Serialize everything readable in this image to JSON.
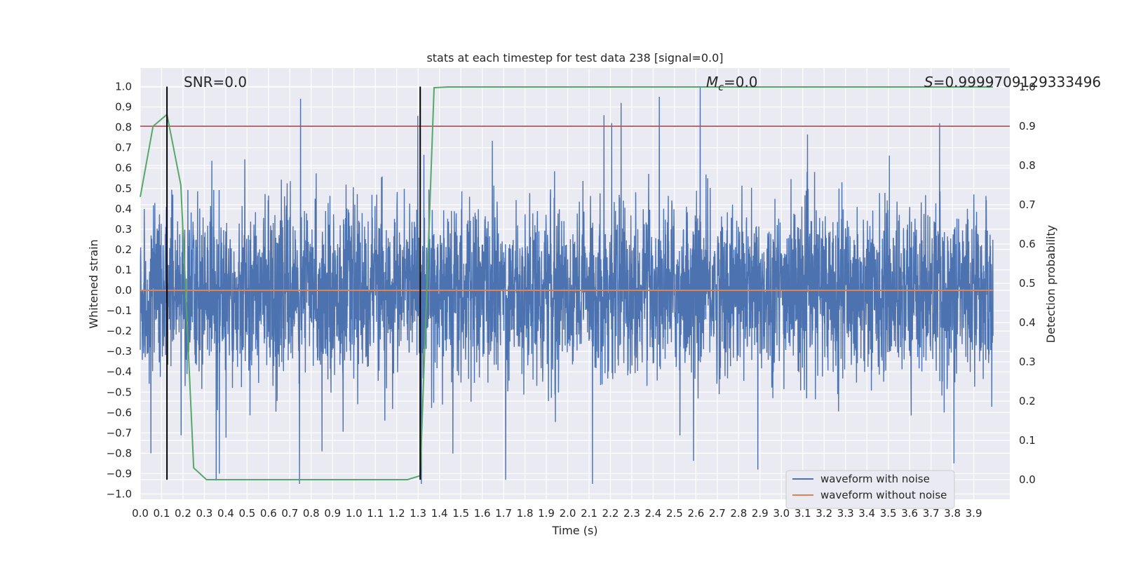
{
  "chart_data": {
    "type": "line",
    "title": "stats at each timestep for test data 238 [signal=0.0]",
    "xlabel": "Time (s)",
    "ylabel": "Whitened strain",
    "y2label": "Detection probability",
    "xlim": [
      0.0,
      3.99
    ],
    "ylim": [
      -1.05,
      1.08
    ],
    "y2lim": [
      -0.05,
      1.0
    ],
    "x_ticks": [
      "0.0",
      "0.1",
      "0.2",
      "0.3",
      "0.4",
      "0.5",
      "0.6",
      "0.7",
      "0.8",
      "0.9",
      "1.0",
      "1.1",
      "1.2",
      "1.3",
      "1.4",
      "1.5",
      "1.6",
      "1.7",
      "1.8",
      "1.9",
      "2.0",
      "2.1",
      "2.2",
      "2.3",
      "2.4",
      "2.5",
      "2.6",
      "2.7",
      "2.8",
      "2.9",
      "3.0",
      "3.1",
      "3.2",
      "3.3",
      "3.4",
      "3.5",
      "3.6",
      "3.7",
      "3.8",
      "3.9"
    ],
    "y_ticks": [
      "1.0",
      "0.9",
      "0.8",
      "0.7",
      "0.6",
      "0.5",
      "0.4",
      "0.3",
      "0.2",
      "0.1",
      "0.0",
      "−0.1",
      "−0.2",
      "−0.3",
      "−0.4",
      "−0.5",
      "−0.6",
      "−0.7",
      "−0.8",
      "−0.9",
      "−1.0"
    ],
    "y2_ticks": [
      "1.0",
      "0.9",
      "0.8",
      "0.7",
      "0.6",
      "0.5",
      "0.4",
      "0.3",
      "0.2",
      "0.1",
      "0.0"
    ],
    "grid": true,
    "legend_position": "lower-right",
    "series": [
      {
        "name": "waveform with noise",
        "color": "#4c72b0",
        "kind": "noise",
        "sample_rate": 1024,
        "std": 0.2,
        "spikes": [
          [
            0.75,
            0.94
          ],
          [
            2.25,
            0.92
          ],
          [
            2.62,
            1.0
          ],
          [
            2.17,
            0.86
          ],
          [
            1.71,
            -0.93
          ],
          [
            3.74,
            0.82
          ],
          [
            0.37,
            -0.9
          ],
          [
            2.89,
            -0.88
          ],
          [
            0.05,
            -0.8
          ]
        ]
      },
      {
        "name": "waveform without noise",
        "color": "#dd8452",
        "kind": "constant",
        "value": 0.0
      }
    ],
    "detection_probability": {
      "color": "#55a868",
      "x": [
        0.0,
        0.06,
        0.125,
        0.19,
        0.25,
        0.31,
        1.25,
        1.31,
        1.375,
        1.44,
        3.99
      ],
      "y": [
        0.72,
        0.9,
        0.93,
        0.75,
        0.03,
        0.0,
        0.0,
        0.01,
        0.998,
        1.0,
        1.0
      ]
    },
    "threshold": {
      "value": 0.9,
      "axis": "y2",
      "color": "#c44e52"
    },
    "vertical_markers": {
      "x": [
        0.125,
        1.31
      ],
      "y_range": [
        -0.93,
        1.0
      ],
      "color": "#000000"
    },
    "annotations": {
      "snr": "SNR=0.0",
      "mc_symbol": "M",
      "mc_sub": "c",
      "mc_value": "=0.0",
      "s_symbol": "S",
      "s_value": "=0.9999709129333496"
    }
  },
  "colors": {
    "plot_bg": "#eaeaf2",
    "grid": "#ffffff"
  }
}
